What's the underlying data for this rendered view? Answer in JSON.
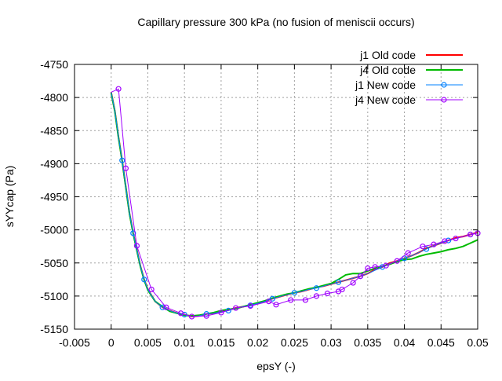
{
  "chart_data": {
    "type": "line",
    "title": "Capillary pressure 300 kPa (no fusion of meniscii occurs)",
    "xlabel": "epsY (-)",
    "ylabel": "sYYcap (Pa)",
    "xlim": [
      -0.005,
      0.05
    ],
    "ylim": [
      -5150,
      -4750
    ],
    "grid": true,
    "legend_position": "top-right",
    "xticks": [
      "-0.005",
      "0",
      "0.005",
      "0.01",
      "0.015",
      "0.02",
      "0.025",
      "0.03",
      "0.035",
      "0.04",
      "0.045",
      "0.05"
    ],
    "xtick_values": [
      -0.005,
      0,
      0.005,
      0.01,
      0.015,
      0.02,
      0.025,
      0.03,
      0.035,
      0.04,
      0.045,
      0.05
    ],
    "yticks": [
      "-4750",
      "-4800",
      "-4850",
      "-4900",
      "-4950",
      "-5000",
      "-5050",
      "-5100",
      "-5150"
    ],
    "ytick_values": [
      -4750,
      -4800,
      -4850,
      -4900,
      -4950,
      -5000,
      -5050,
      -5100,
      -5150
    ],
    "series": [
      {
        "name": "j1 Old code",
        "color": "#ff0000",
        "style": "thick",
        "x": [
          0,
          0.0005,
          0.001,
          0.0015,
          0.002,
          0.0025,
          0.003,
          0.0035,
          0.004,
          0.0045,
          0.005,
          0.006,
          0.007,
          0.008,
          0.009,
          0.01,
          0.011,
          0.012,
          0.013,
          0.014,
          0.015,
          0.016,
          0.017,
          0.018,
          0.019,
          0.02,
          0.021,
          0.022,
          0.023,
          0.024,
          0.025,
          0.026,
          0.027,
          0.028,
          0.029,
          0.03,
          0.031,
          0.032,
          0.033,
          0.034,
          0.035,
          0.036,
          0.037,
          0.038,
          0.039,
          0.04,
          0.041,
          0.042,
          0.043,
          0.044,
          0.045,
          0.046,
          0.047,
          0.048,
          0.049,
          0.05
        ],
        "y": [
          -4792,
          -4820,
          -4860,
          -4895,
          -4935,
          -4975,
          -5005,
          -5030,
          -5055,
          -5075,
          -5090,
          -5108,
          -5117,
          -5122,
          -5126,
          -5128,
          -5131,
          -5130,
          -5127,
          -5126,
          -5124,
          -5121,
          -5118,
          -5116,
          -5114,
          -5111,
          -5108,
          -5104,
          -5101,
          -5098,
          -5095,
          -5093,
          -5090,
          -5087,
          -5085,
          -5082,
          -5079,
          -5076,
          -5073,
          -5070,
          -5066,
          -5060,
          -5056,
          -5050,
          -5047,
          -5043,
          -5039,
          -5034,
          -5028,
          -5024,
          -5020,
          -5016,
          -5012,
          -5010,
          -5007,
          -5004
        ]
      },
      {
        "name": "j4 Old code",
        "color": "#00bb00",
        "style": "thick",
        "x": [
          0,
          0.0005,
          0.001,
          0.0015,
          0.002,
          0.0025,
          0.003,
          0.0035,
          0.004,
          0.0045,
          0.005,
          0.006,
          0.007,
          0.008,
          0.009,
          0.01,
          0.011,
          0.012,
          0.013,
          0.014,
          0.015,
          0.016,
          0.017,
          0.018,
          0.019,
          0.02,
          0.021,
          0.022,
          0.023,
          0.024,
          0.025,
          0.026,
          0.027,
          0.028,
          0.029,
          0.03,
          0.031,
          0.032,
          0.033,
          0.034,
          0.035,
          0.036,
          0.037,
          0.038,
          0.039,
          0.04,
          0.041,
          0.042,
          0.043,
          0.044,
          0.045,
          0.046,
          0.047,
          0.048,
          0.049,
          0.05
        ],
        "y": [
          -4793,
          -4821,
          -4861,
          -4896,
          -4936,
          -4976,
          -5006,
          -5031,
          -5056,
          -5076,
          -5091,
          -5108,
          -5116,
          -5123,
          -5126,
          -5129,
          -5130,
          -5129,
          -5127,
          -5125,
          -5122,
          -5120,
          -5119,
          -5116,
          -5113,
          -5110,
          -5107,
          -5103,
          -5100,
          -5097,
          -5095,
          -5092,
          -5089,
          -5087,
          -5084,
          -5081,
          -5075,
          -5068,
          -5066,
          -5066,
          -5062,
          -5058,
          -5055,
          -5052,
          -5048,
          -5045,
          -5044,
          -5040,
          -5037,
          -5035,
          -5033,
          -5030,
          -5028,
          -5025,
          -5020,
          -5015
        ]
      },
      {
        "name": "j1 New code",
        "color": "#0080ff",
        "style": "thin-markers",
        "x": [
          0,
          0.0005,
          0.001,
          0.0015,
          0.002,
          0.0025,
          0.003,
          0.0035,
          0.004,
          0.0045,
          0.005,
          0.006,
          0.007,
          0.008,
          0.009,
          0.01,
          0.011,
          0.012,
          0.013,
          0.014,
          0.015,
          0.016,
          0.017,
          0.018,
          0.019,
          0.02,
          0.021,
          0.022,
          0.023,
          0.024,
          0.025,
          0.026,
          0.027,
          0.028,
          0.029,
          0.03,
          0.031,
          0.032,
          0.033,
          0.034,
          0.035,
          0.036,
          0.037,
          0.038,
          0.039,
          0.04,
          0.041,
          0.042,
          0.043,
          0.044,
          0.045,
          0.046,
          0.047,
          0.048,
          0.049,
          0.05
        ],
        "y": [
          -4792,
          -4820,
          -4860,
          -4895,
          -4935,
          -4975,
          -5005,
          -5030,
          -5055,
          -5075,
          -5090,
          -5108,
          -5117,
          -5122,
          -5126,
          -5128,
          -5131,
          -5130,
          -5127,
          -5126,
          -5124,
          -5122,
          -5118,
          -5116,
          -5114,
          -5111,
          -5108,
          -5104,
          -5101,
          -5098,
          -5095,
          -5093,
          -5090,
          -5088,
          -5085,
          -5082,
          -5079,
          -5076,
          -5073,
          -5070,
          -5066,
          -5061,
          -5056,
          -5051,
          -5047,
          -5043,
          -5039,
          -5034,
          -5029,
          -5024,
          -5020,
          -5016,
          -5013,
          -5010,
          -5007,
          -5005
        ],
        "marker_every": 3
      },
      {
        "name": "j4 New code",
        "color": "#a000ff",
        "style": "thin-markers",
        "x": [
          0,
          0.001,
          0.002,
          0.0035,
          0.0055,
          0.0075,
          0.0095,
          0.011,
          0.013,
          0.015,
          0.017,
          0.019,
          0.0215,
          0.0225,
          0.0245,
          0.0265,
          0.028,
          0.0295,
          0.031,
          0.0315,
          0.033,
          0.034,
          0.035,
          0.036,
          0.0375,
          0.039,
          0.0405,
          0.0425,
          0.044,
          0.0455,
          0.047,
          0.049,
          0.05
        ],
        "y": [
          -4792,
          -4787,
          -4907,
          -5024,
          -5090,
          -5117,
          -5126,
          -5131,
          -5130,
          -5125,
          -5118,
          -5115,
          -5108,
          -5113,
          -5106,
          -5106,
          -5100,
          -5096,
          -5093,
          -5090,
          -5080,
          -5070,
          -5058,
          -5056,
          -5054,
          -5047,
          -5035,
          -5025,
          -5022,
          -5017,
          -5013,
          -5007,
          -5005
        ],
        "marker_every": 1
      }
    ]
  }
}
